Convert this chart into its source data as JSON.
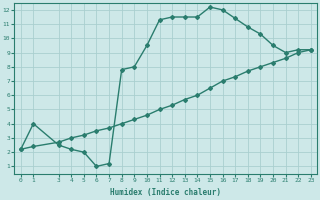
{
  "line1_x": [
    0,
    1,
    3,
    4,
    5,
    6,
    7,
    8,
    9,
    10,
    11,
    12,
    13,
    14,
    15,
    16,
    17,
    18,
    19,
    20,
    21,
    22,
    23
  ],
  "line1_y": [
    2.2,
    4.0,
    2.5,
    2.2,
    2.0,
    1.0,
    1.2,
    7.8,
    8.0,
    9.5,
    11.3,
    11.5,
    11.5,
    11.5,
    12.2,
    12.0,
    11.4,
    10.8,
    10.3,
    9.5,
    9.0,
    9.2,
    9.2
  ],
  "line2_x": [
    0,
    1,
    3,
    4,
    5,
    6,
    7,
    8,
    9,
    10,
    11,
    12,
    13,
    14,
    15,
    16,
    17,
    18,
    19,
    20,
    21,
    22,
    23
  ],
  "line2_y": [
    2.2,
    2.4,
    2.7,
    3.0,
    3.2,
    3.5,
    3.7,
    4.0,
    4.3,
    4.6,
    5.0,
    5.3,
    5.7,
    6.0,
    6.5,
    7.0,
    7.3,
    7.7,
    8.0,
    8.3,
    8.6,
    9.0,
    9.2
  ],
  "xlabel": "Humidex (Indice chaleur)",
  "xlim": [
    -0.5,
    23.5
  ],
  "ylim": [
    0.5,
    12.5
  ],
  "xticks": [
    0,
    1,
    3,
    4,
    5,
    6,
    7,
    8,
    9,
    10,
    11,
    12,
    13,
    14,
    15,
    16,
    17,
    18,
    19,
    20,
    21,
    22,
    23
  ],
  "yticks": [
    1,
    2,
    3,
    4,
    5,
    6,
    7,
    8,
    9,
    10,
    11,
    12
  ],
  "line_color": "#2a7d6e",
  "bg_color": "#cde8e8",
  "grid_color": "#aacfcf",
  "marker": "D",
  "marker_size": 2.0,
  "line_width": 1.0,
  "tick_fontsize": 4.5,
  "xlabel_fontsize": 5.5
}
